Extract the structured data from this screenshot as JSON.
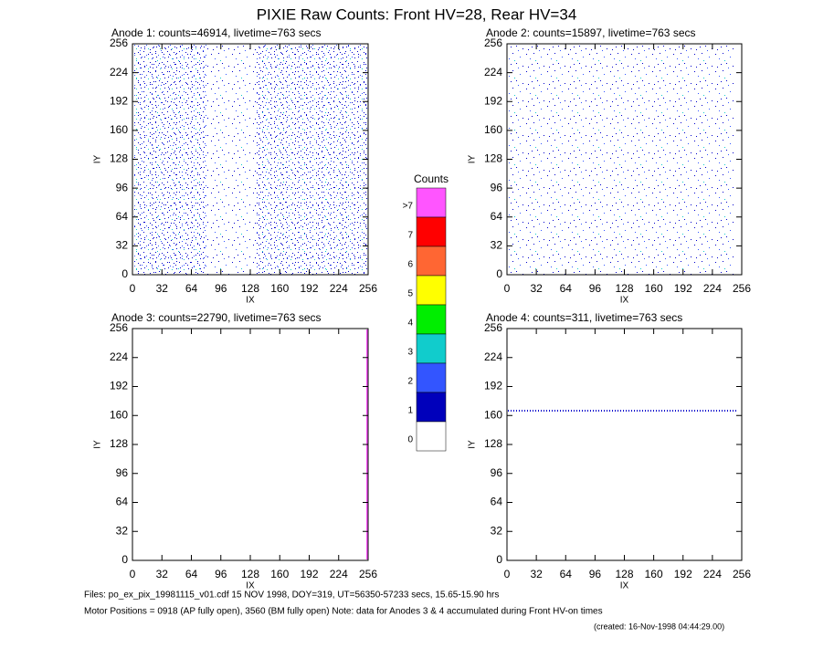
{
  "title": "PIXIE Raw Counts:  Front HV=28, Rear HV=34",
  "chart_data": [
    {
      "type": "image",
      "title": "Anode 1: counts=46914, livetime=763 secs",
      "xlabel": "IX",
      "ylabel": "IY",
      "xlim": [
        0,
        256
      ],
      "ylim": [
        0,
        256
      ],
      "xticks": [
        0,
        32,
        64,
        96,
        128,
        160,
        192,
        224,
        256
      ],
      "yticks": [
        0,
        32,
        64,
        96,
        128,
        160,
        192,
        224,
        256
      ]
    },
    {
      "type": "image",
      "title": "Anode 2: counts=15897, livetime=763 secs",
      "xlabel": "IX",
      "ylabel": "IY",
      "xlim": [
        0,
        256
      ],
      "ylim": [
        0,
        256
      ],
      "xticks": [
        0,
        32,
        64,
        96,
        128,
        160,
        192,
        224,
        256
      ],
      "yticks": [
        0,
        32,
        64,
        96,
        128,
        160,
        192,
        224,
        256
      ]
    },
    {
      "type": "image",
      "title": "Anode 3: counts=22790, livetime=763 secs",
      "xlabel": "IX",
      "ylabel": "IY",
      "xlim": [
        0,
        256
      ],
      "ylim": [
        0,
        256
      ],
      "xticks": [
        0,
        32,
        64,
        96,
        128,
        160,
        192,
        224,
        256
      ],
      "yticks": [
        0,
        32,
        64,
        96,
        128,
        160,
        192,
        224,
        256
      ]
    },
    {
      "type": "image",
      "title": "Anode 4: counts=311, livetime=763 secs",
      "xlabel": "IX",
      "ylabel": "IY",
      "xlim": [
        0,
        256
      ],
      "ylim": [
        0,
        256
      ],
      "xticks": [
        0,
        32,
        64,
        96,
        128,
        160,
        192,
        224,
        256
      ],
      "yticks": [
        0,
        32,
        64,
        96,
        128,
        160,
        192,
        224,
        256
      ]
    }
  ],
  "colorbar": {
    "title": "Counts",
    "levels": [
      {
        "label": ">7",
        "color": "#ff55ff"
      },
      {
        "label": "7",
        "color": "#ff0000"
      },
      {
        "label": "6",
        "color": "#ff6633"
      },
      {
        "label": "5",
        "color": "#ffff00"
      },
      {
        "label": "4",
        "color": "#00ee00"
      },
      {
        "label": "3",
        "color": "#11cccc"
      },
      {
        "label": "2",
        "color": "#3355ff"
      },
      {
        "label": "1",
        "color": "#0000bb"
      },
      {
        "label": "0",
        "color": "#ffffff"
      }
    ]
  },
  "footer": {
    "files": "Files: po_ex_pix_19981115_v01.cdf    15 NOV 1998, DOY=319, UT=56350-57233 secs, 15.65-15.90 hrs",
    "motor": "Motor Positions = 0918 (AP fully open), 3560 (BM fully open)    Note: data for Anodes 3 & 4 accumulated during Front HV-on times",
    "created": "(created: 16-Nov-1998 04:44:29.00)"
  }
}
